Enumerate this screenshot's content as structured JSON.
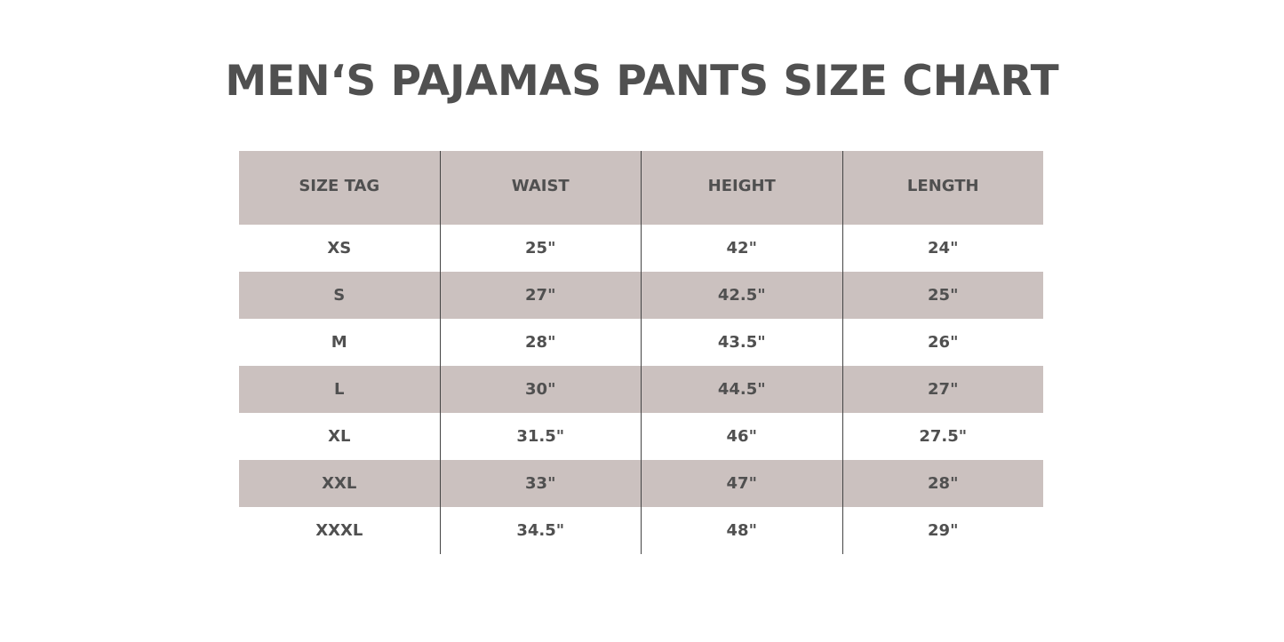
{
  "title": "MEN‘S PAJAMAS PANTS SIZE CHART",
  "colors": {
    "header_bg": "#cbc1bf",
    "text": "#505050",
    "row_alt_bg": "#cbc1bf"
  },
  "table": {
    "columns": [
      "SIZE TAG",
      "WAIST",
      "HEIGHT",
      "LENGTH"
    ],
    "rows": [
      [
        "XS",
        "25\"",
        "42\"",
        "24\""
      ],
      [
        "S",
        "27\"",
        "42.5\"",
        "25\""
      ],
      [
        "M",
        "28\"",
        "43.5\"",
        "26\""
      ],
      [
        "L",
        "30\"",
        "44.5\"",
        "27\""
      ],
      [
        "XL",
        "31.5\"",
        "46\"",
        "27.5\""
      ],
      [
        "XXL",
        "33\"",
        "47\"",
        "28\""
      ],
      [
        "XXXL",
        "34.5\"",
        "48\"",
        "29\""
      ]
    ]
  }
}
